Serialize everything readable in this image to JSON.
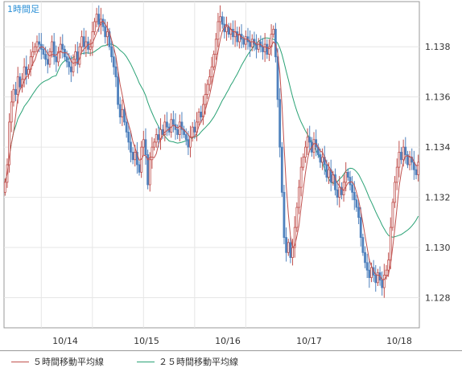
{
  "chart_data": {
    "type": "candlestick",
    "title": "1時間足",
    "x_ticks": [
      "10/14",
      "10/15",
      "10/16",
      "10/17",
      "10/18"
    ],
    "y_ticks": [
      "1.128",
      "1.130",
      "1.132",
      "1.134",
      "1.136",
      "1.138"
    ],
    "ylim": [
      1.1268,
      1.1398
    ],
    "grid": true,
    "legend_position": "bottom",
    "up_color": "#c0504d",
    "down_color": "#4f81bd",
    "series": [
      {
        "name": "５時間移動平均線",
        "color": "#c0504d"
      },
      {
        "name": "２５時間移動平均線",
        "color": "#2aa275"
      }
    ],
    "closes": [
      1.1326,
      1.1333,
      1.135,
      1.1358,
      1.1363,
      1.1361,
      1.1368,
      1.1364,
      1.1367,
      1.1372,
      1.1369,
      1.1371,
      1.1376,
      1.1378,
      1.138,
      1.1382,
      1.1381,
      1.1379,
      1.1377,
      1.1375,
      1.1373,
      1.1378,
      1.1382,
      1.1376,
      1.1374,
      1.1378,
      1.1381,
      1.1379,
      1.1376,
      1.1374,
      1.1372,
      1.137,
      1.1375,
      1.1378,
      1.1373,
      1.138,
      1.1384,
      1.138,
      1.1382,
      1.1379,
      1.138,
      1.1386,
      1.139,
      1.1393,
      1.1389,
      1.1391,
      1.1388,
      1.1384,
      1.1386,
      1.138,
      1.1376,
      1.1372,
      1.1368,
      1.1357,
      1.1352,
      1.1355,
      1.135,
      1.1346,
      1.1342,
      1.1338,
      1.1335,
      1.1338,
      1.1333,
      1.133,
      1.134,
      1.1343,
      1.1337,
      1.1325,
      1.1335,
      1.134,
      1.1342,
      1.1345,
      1.1343,
      1.1347,
      1.1345,
      1.135,
      1.1348,
      1.1346,
      1.1351,
      1.1349,
      1.1347,
      1.1345,
      1.135,
      1.1347,
      1.1345,
      1.1343,
      1.134,
      1.1344,
      1.1348,
      1.1346,
      1.135,
      1.1354,
      1.1352,
      1.1357,
      1.1361,
      1.1365,
      1.1368,
      1.1372,
      1.1377,
      1.1383,
      1.139,
      1.1392,
      1.1389,
      1.1386,
      1.1388,
      1.1385,
      1.1387,
      1.1384,
      1.1386,
      1.1382,
      1.1385,
      1.1383,
      1.1381,
      1.1384,
      1.1382,
      1.138,
      1.1383,
      1.1381,
      1.1379,
      1.1382,
      1.138,
      1.1378,
      1.1381,
      1.1377,
      1.138,
      1.1385,
      1.1387,
      1.1376,
      1.1359,
      1.134,
      1.1322,
      1.1304,
      1.1298,
      1.1302,
      1.1296,
      1.13,
      1.1308,
      1.1316,
      1.1324,
      1.1332,
      1.1336,
      1.134,
      1.1344,
      1.1342,
      1.1338,
      1.1343,
      1.134,
      1.1337,
      1.1334,
      1.1336,
      1.1333,
      1.1328,
      1.1331,
      1.1326,
      1.1329,
      1.1323,
      1.132,
      1.1324,
      1.1321,
      1.1326,
      1.133,
      1.1328,
      1.1325,
      1.1322,
      1.1319,
      1.1316,
      1.1312,
      1.1304,
      1.1298,
      1.1294,
      1.1291,
      1.1288,
      1.1292,
      1.1289,
      1.1286,
      1.129,
      1.1287,
      1.1284,
      1.1289,
      1.1291,
      1.1295,
      1.1308,
      1.1318,
      1.1326,
      1.1332,
      1.1338,
      1.1335,
      1.134,
      1.1337,
      1.1333,
      1.1336,
      1.1334,
      1.1331,
      1.1329,
      1.1334
    ]
  }
}
